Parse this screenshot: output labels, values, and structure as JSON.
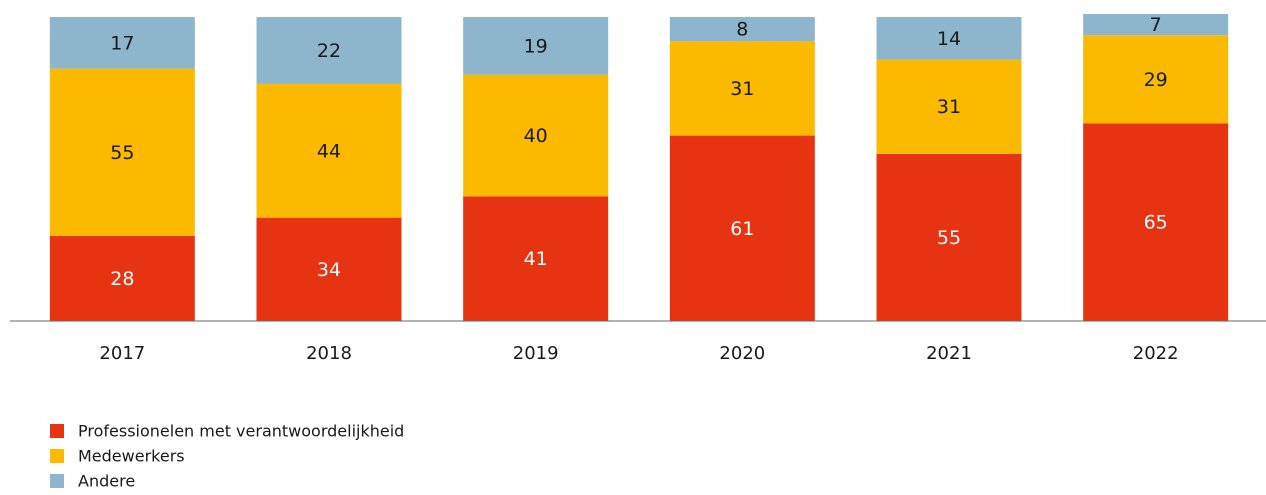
{
  "chart_data": {
    "type": "bar",
    "stacked": true,
    "categories": [
      "2017",
      "2018",
      "2019",
      "2020",
      "2021",
      "2022"
    ],
    "series": [
      {
        "name": "Professionelen met verantwoordelijkheid",
        "color": "#e63312",
        "values": [
          28,
          34,
          41,
          61,
          55,
          65
        ]
      },
      {
        "name": "Medewerkers",
        "color": "#fbba00",
        "values": [
          55,
          44,
          40,
          31,
          31,
          29
        ]
      },
      {
        "name": "Andere",
        "color": "#8db5cc",
        "values": [
          17,
          22,
          19,
          8,
          14,
          7
        ]
      }
    ]
  }
}
